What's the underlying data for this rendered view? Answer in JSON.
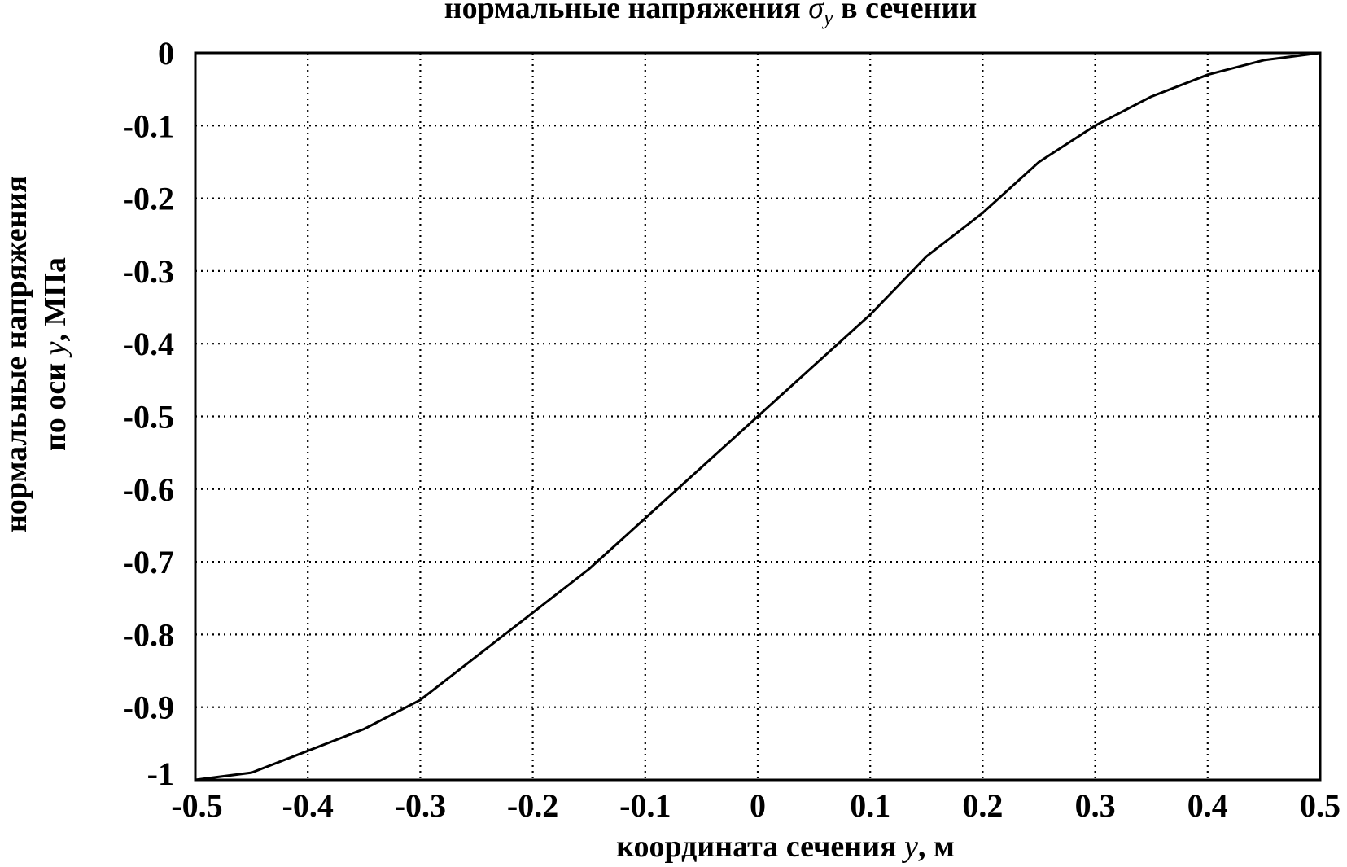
{
  "chart_data": {
    "type": "line",
    "title_parts": [
      "нормальные напряжения ",
      "σ",
      "y",
      " в сечении"
    ],
    "xlabel_parts": [
      "координата сечения ",
      "y",
      ", м"
    ],
    "ylabel_line1": "нормальные напряжения",
    "ylabel_line2_parts": [
      "по оси ",
      "y",
      ",  МПа"
    ],
    "xlim": [
      -0.5,
      0.5
    ],
    "ylim": [
      -1,
      0
    ],
    "xticks": [
      -0.5,
      -0.4,
      -0.3,
      -0.2,
      -0.1,
      0,
      0.1,
      0.2,
      0.3,
      0.4,
      0.5
    ],
    "xtick_labels": [
      "-0.5",
      "-0.4",
      "-0.3",
      "-0.2",
      "-0.1",
      "0",
      "0.1",
      "0.2",
      "0.3",
      "0.4",
      "0.5"
    ],
    "yticks": [
      0,
      -0.1,
      -0.2,
      -0.3,
      -0.4,
      -0.5,
      -0.6,
      -0.7,
      -0.8,
      -0.9,
      -1
    ],
    "ytick_labels": [
      "0",
      "-0.1",
      "-0.2",
      "-0.3",
      "-0.4",
      "-0.5",
      "-0.6",
      "-0.7",
      "-0.8",
      "-0.9",
      "-1"
    ],
    "grid": true,
    "series": [
      {
        "x": [
          -0.5,
          -0.45,
          -0.4,
          -0.35,
          -0.3,
          -0.25,
          -0.2,
          -0.15,
          -0.1,
          -0.05,
          0,
          0.05,
          0.1,
          0.15,
          0.2,
          0.25,
          0.3,
          0.35,
          0.4,
          0.45,
          0.5
        ],
        "y": [
          -1.0,
          -0.99,
          -0.96,
          -0.93,
          -0.89,
          -0.83,
          -0.77,
          -0.71,
          -0.64,
          -0.57,
          -0.5,
          -0.43,
          -0.36,
          -0.28,
          -0.22,
          -0.15,
          -0.1,
          -0.06,
          -0.03,
          -0.01,
          0.0
        ]
      }
    ]
  }
}
